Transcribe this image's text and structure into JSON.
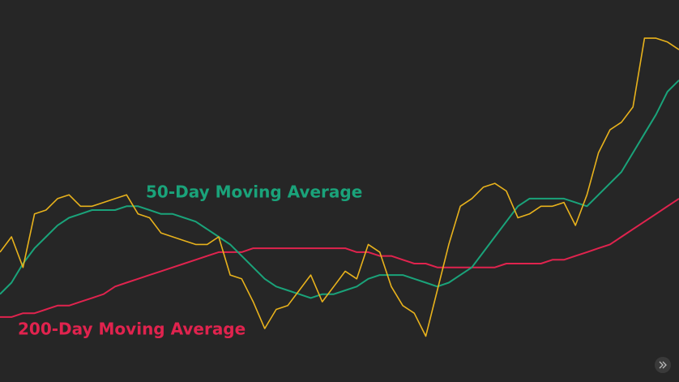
{
  "chart_data": {
    "type": "line",
    "categories": [
      null,
      null,
      null,
      null,
      null,
      null,
      null,
      null,
      null,
      null,
      null,
      null,
      null,
      null,
      null,
      null,
      null,
      null,
      null,
      null,
      null,
      null,
      null,
      null,
      null,
      null,
      null,
      null,
      null,
      null,
      null,
      null,
      null,
      null,
      null,
      null,
      null,
      null,
      null,
      null,
      null,
      null,
      null,
      null,
      null,
      null,
      null,
      null,
      null,
      null,
      null,
      null,
      null,
      null,
      null,
      null,
      null,
      null,
      null,
      null
    ],
    "ylim": [
      0,
      100
    ],
    "series": [
      {
        "name": "200-Day Moving Average",
        "color": "#e0234e",
        "width": 2,
        "values": [
          17,
          17,
          18,
          18,
          19,
          20,
          20,
          21,
          22,
          23,
          25,
          26,
          27,
          28,
          29,
          30,
          31,
          32,
          33,
          34,
          34,
          34,
          35,
          35,
          35,
          35,
          35,
          35,
          35,
          35,
          35,
          34,
          34,
          33,
          33,
          32,
          31,
          31,
          30,
          30,
          30,
          30,
          30,
          30,
          31,
          31,
          31,
          31,
          32,
          32,
          33,
          34,
          35,
          36,
          38,
          40,
          42,
          44,
          46,
          48
        ]
      },
      {
        "name": "50-Day Moving Average",
        "color": "#1aa37a",
        "width": 2,
        "values": [
          23,
          26,
          31,
          35,
          38,
          41,
          43,
          44,
          45,
          45,
          45,
          46,
          46,
          45,
          44,
          44,
          43,
          42,
          40,
          38,
          36,
          33,
          30,
          27,
          25,
          24,
          23,
          22,
          23,
          23,
          24,
          25,
          27,
          28,
          28,
          28,
          27,
          26,
          25,
          26,
          28,
          30,
          34,
          38,
          42,
          46,
          48,
          48,
          48,
          48,
          47,
          46,
          49,
          52,
          55,
          60,
          65,
          70,
          76,
          79
        ]
      },
      {
        "color": "#e8b21c",
        "width": 1.6,
        "values": [
          34,
          38,
          30,
          44,
          45,
          48,
          49,
          46,
          46,
          47,
          48,
          49,
          44,
          43,
          39,
          38,
          37,
          36,
          36,
          38,
          28,
          27,
          21,
          14,
          19,
          20,
          24,
          28,
          21,
          25,
          29,
          27,
          36,
          34,
          25,
          20,
          18,
          12,
          24,
          36,
          46,
          48,
          51,
          52,
          50,
          43,
          44,
          46,
          46,
          47,
          41,
          49,
          60,
          66,
          68,
          72,
          90,
          90,
          89,
          87
        ]
      }
    ]
  }
}
